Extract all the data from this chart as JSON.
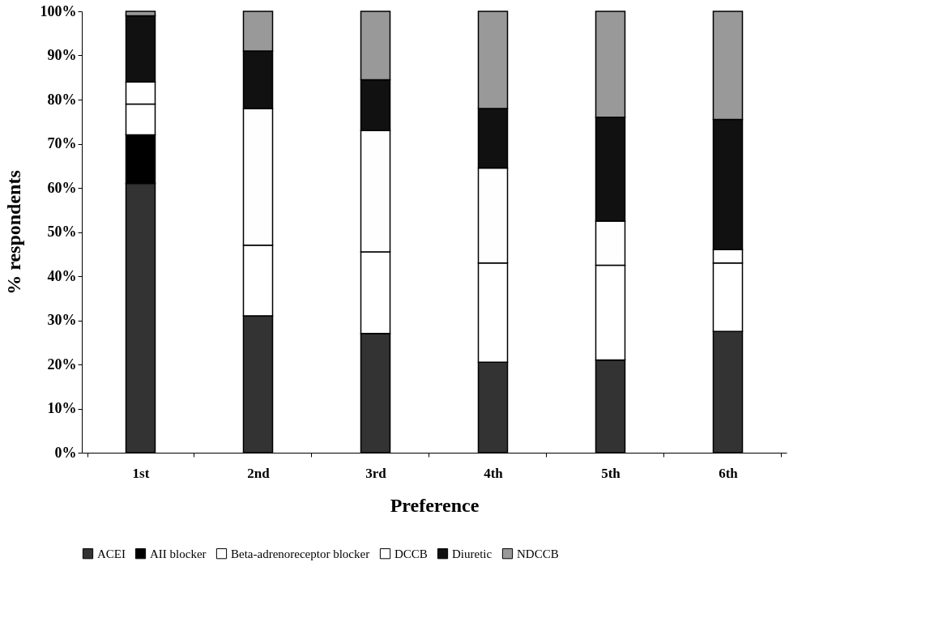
{
  "chart_data": {
    "type": "bar",
    "stacked": true,
    "xlabel": "Preference",
    "ylabel": "% respondents",
    "categories": [
      "1st",
      "2nd",
      "3rd",
      "4th",
      "5th",
      "6th"
    ],
    "series": [
      {
        "name": "ACEI",
        "color": "#333333",
        "values": [
          61,
          31,
          27,
          20.5,
          21,
          27.5
        ]
      },
      {
        "name": "AII blocker",
        "color": "#000000",
        "values": [
          11,
          0,
          0,
          0,
          0,
          0
        ]
      },
      {
        "name": "Beta-adrenoreceptor blocker",
        "color": "#ffffff",
        "values": [
          7,
          16,
          18.5,
          22.5,
          21.5,
          15.5
        ]
      },
      {
        "name": "DCCB",
        "color": "#fefefe",
        "values": [
          5,
          31,
          27.5,
          21.5,
          10,
          3
        ]
      },
      {
        "name": "Diuretic",
        "color": "#111111",
        "values": [
          15,
          13,
          11.5,
          13.5,
          23.5,
          29.5
        ]
      },
      {
        "name": "NDCCB",
        "color": "#999999",
        "values": [
          1,
          9,
          15.5,
          22,
          24,
          24.5
        ]
      }
    ],
    "ylim": [
      0,
      100
    ],
    "yticks": [
      {
        "value": 0,
        "label": "0%"
      },
      {
        "value": 10,
        "label": "10%"
      },
      {
        "value": 20,
        "label": "20%"
      },
      {
        "value": 30,
        "label": "30%"
      },
      {
        "value": 40,
        "label": "40%"
      },
      {
        "value": 50,
        "label": "50%"
      },
      {
        "value": 60,
        "label": "60%"
      },
      {
        "value": 70,
        "label": "70%"
      },
      {
        "value": 80,
        "label": "80%"
      },
      {
        "value": 90,
        "label": "90%"
      },
      {
        "value": 100,
        "label": "100%"
      }
    ],
    "grid": false,
    "legend": "bottom"
  }
}
